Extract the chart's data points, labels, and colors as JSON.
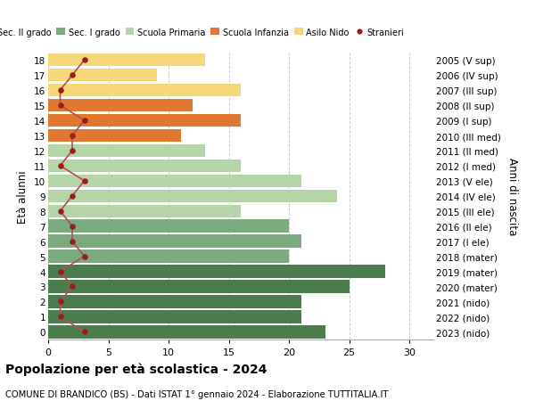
{
  "ages": [
    18,
    17,
    16,
    15,
    14,
    13,
    12,
    11,
    10,
    9,
    8,
    7,
    6,
    5,
    4,
    3,
    2,
    1,
    0
  ],
  "bar_values": [
    23,
    21,
    21,
    25,
    28,
    20,
    21,
    20,
    16,
    24,
    21,
    16,
    13,
    11,
    16,
    12,
    16,
    9,
    13
  ],
  "stranieri": [
    3,
    1,
    1,
    2,
    1,
    3,
    2,
    2,
    1,
    2,
    3,
    1,
    2,
    2,
    3,
    1,
    1,
    2,
    3
  ],
  "right_labels": [
    "2005 (V sup)",
    "2006 (IV sup)",
    "2007 (III sup)",
    "2008 (II sup)",
    "2009 (I sup)",
    "2010 (III med)",
    "2011 (II med)",
    "2012 (I med)",
    "2013 (V ele)",
    "2014 (IV ele)",
    "2015 (III ele)",
    "2016 (II ele)",
    "2017 (I ele)",
    "2018 (mater)",
    "2019 (mater)",
    "2020 (mater)",
    "2021 (nido)",
    "2022 (nido)",
    "2023 (nido)"
  ],
  "bar_colors": [
    "#4a7c4e",
    "#4a7c4e",
    "#4a7c4e",
    "#4a7c4e",
    "#4a7c4e",
    "#7aaa7e",
    "#7aaa7e",
    "#7aaa7e",
    "#b5d4a8",
    "#b5d4a8",
    "#b5d4a8",
    "#b5d4a8",
    "#b5d4a8",
    "#e07832",
    "#e07832",
    "#e07832",
    "#f5d87a",
    "#f5d87a",
    "#f5d87a"
  ],
  "legend_labels": [
    "Sec. II grado",
    "Sec. I grado",
    "Scuola Primaria",
    "Scuola Infanzia",
    "Asilo Nido",
    "Stranieri"
  ],
  "legend_colors": [
    "#4a7c4e",
    "#7aaa7e",
    "#b5d4a8",
    "#e07832",
    "#f5d87a",
    "#9b1c1c"
  ],
  "title_bold": "Popolazione per età scolastica - 2024",
  "subtitle": "COMUNE DI BRANDICO (BS) - Dati ISTAT 1° gennaio 2024 - Elaborazione TUTTITALIA.IT",
  "xlabel_left": "Età alunni",
  "xlabel_right": "Anni di nascita",
  "xlim": [
    0,
    32
  ],
  "background_color": "#ffffff",
  "stranieri_color": "#9b1c1c",
  "stranieri_line_color": "#b05050"
}
